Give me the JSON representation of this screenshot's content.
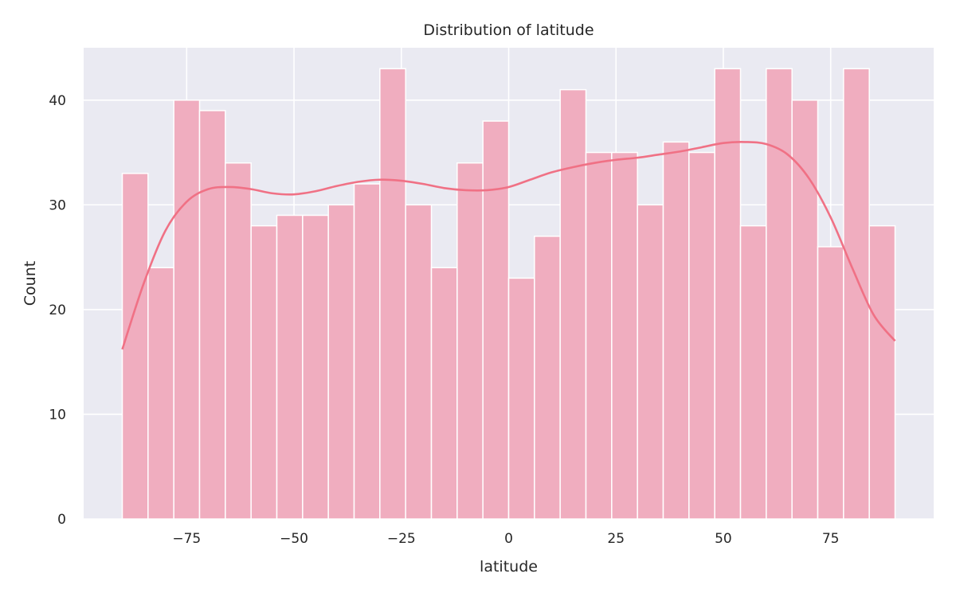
{
  "chart_data": {
    "type": "bar",
    "title": "Distribution of latitude",
    "xlabel": "latitude",
    "ylabel": "Count",
    "xlim": [
      -99,
      99
    ],
    "ylim": [
      0,
      45
    ],
    "x_ticks": [
      -75,
      -50,
      -25,
      0,
      25,
      50,
      75
    ],
    "x_tick_labels": [
      "−75",
      "−50",
      "−25",
      "0",
      "25",
      "50",
      "75"
    ],
    "y_ticks": [
      0,
      10,
      20,
      30,
      40
    ],
    "y_tick_labels": [
      "0",
      "10",
      "20",
      "30",
      "40"
    ],
    "grid": true,
    "bin_range": [
      -90,
      90
    ],
    "values": [
      33,
      24,
      40,
      39,
      34,
      28,
      29,
      29,
      30,
      32,
      43,
      30,
      24,
      34,
      38,
      23,
      27,
      41,
      35,
      35,
      30,
      36,
      35,
      43,
      28,
      43,
      40,
      26,
      43,
      28
    ],
    "kde": {
      "x": [
        -90,
        -85,
        -80,
        -75,
        -70,
        -65,
        -60,
        -55,
        -50,
        -45,
        -40,
        -35,
        -30,
        -25,
        -20,
        -15,
        -10,
        -5,
        0,
        5,
        10,
        15,
        20,
        25,
        30,
        35,
        40,
        45,
        50,
        55,
        60,
        65,
        70,
        75,
        80,
        85,
        90
      ],
      "y": [
        16.2,
        22.5,
        27.5,
        30.3,
        31.5,
        31.7,
        31.5,
        31.1,
        31.0,
        31.3,
        31.8,
        32.2,
        32.4,
        32.3,
        32.0,
        31.6,
        31.4,
        31.4,
        31.7,
        32.4,
        33.1,
        33.6,
        34.0,
        34.3,
        34.5,
        34.8,
        35.1,
        35.5,
        35.9,
        36.0,
        35.8,
        34.8,
        32.5,
        28.8,
        24.0,
        19.5,
        17.0
      ]
    },
    "colors": {
      "bar": "#f0adbf",
      "kde": "#f07185",
      "background": "#eaeaf2",
      "grid": "#ffffff"
    }
  }
}
